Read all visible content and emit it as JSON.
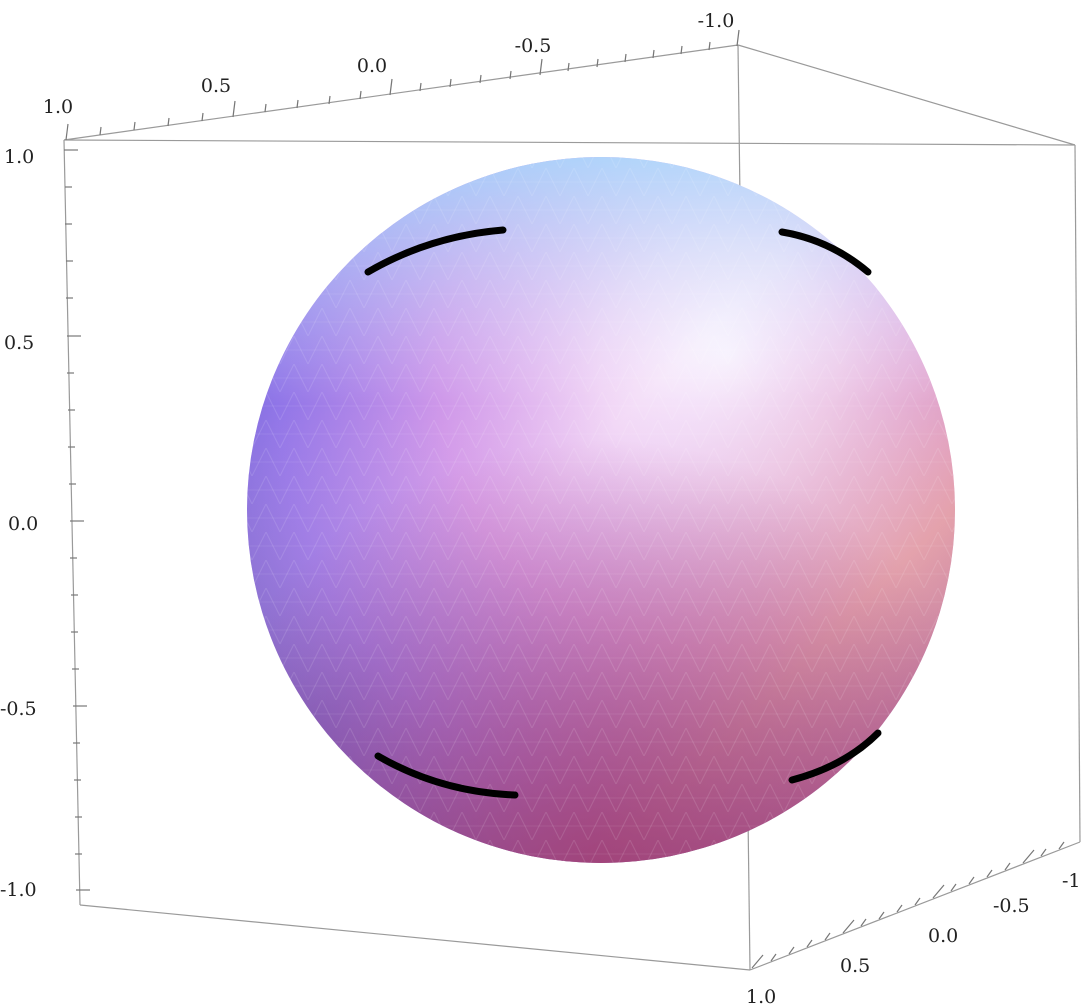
{
  "figure": {
    "type": "3d-plot",
    "surface": "sphere",
    "colors": {
      "box": "#9a9a9a",
      "arc": "#000000",
      "sphere_blue": "#5a5cf0",
      "sphere_light": "#f4f8ff",
      "sphere_pink": "#e79ad8",
      "sphere_orange": "#f6a06a",
      "sphere_magenta": "#b8366f"
    },
    "axes": {
      "top": [
        "1.0",
        "0.5",
        "0.0",
        "-0.5",
        "-1.0"
      ],
      "left": [
        "1.0",
        "0.5",
        "0.0",
        "-0.5",
        "-1.0"
      ],
      "bottom_right": [
        "1.0",
        "0.5",
        "0.0",
        "-0.5",
        "-1"
      ]
    },
    "arcs": [
      "upper-left",
      "upper-right",
      "lower-left",
      "lower-right"
    ]
  }
}
